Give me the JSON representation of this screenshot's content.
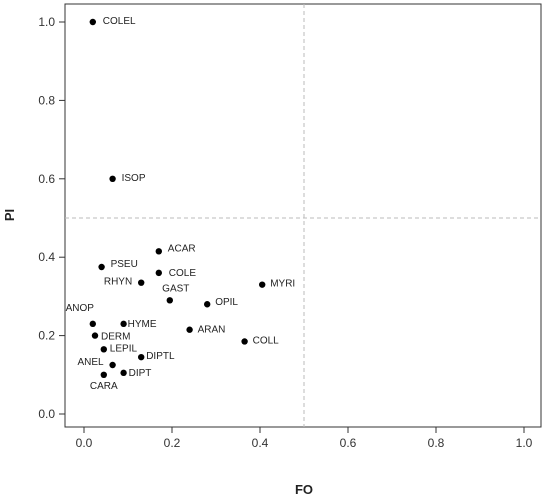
{
  "chart_data": {
    "type": "scatter",
    "xlabel": "FO",
    "ylabel": "PI",
    "xlim": [
      0,
      1.0
    ],
    "ylim": [
      0,
      1.0
    ],
    "xticks": [
      "0.0",
      "0.2",
      "0.4",
      "0.6",
      "0.8",
      "1.0"
    ],
    "yticks": [
      "0.0",
      "0.2",
      "0.4",
      "0.6",
      "0.8",
      "1.0"
    ],
    "reference_lines": {
      "x": 0.5,
      "y": 0.5,
      "style": "dashed"
    },
    "grid": false,
    "points": [
      {
        "label": "COLEL",
        "x": 0.02,
        "y": 1.0
      },
      {
        "label": "ISOP",
        "x": 0.065,
        "y": 0.6
      },
      {
        "label": "ACAR",
        "x": 0.17,
        "y": 0.415
      },
      {
        "label": "PSEU",
        "x": 0.04,
        "y": 0.375
      },
      {
        "label": "COLE",
        "x": 0.17,
        "y": 0.36
      },
      {
        "label": "RHYN",
        "x": 0.13,
        "y": 0.335
      },
      {
        "label": "MYRI",
        "x": 0.405,
        "y": 0.33
      },
      {
        "label": "GAST",
        "x": 0.195,
        "y": 0.29
      },
      {
        "label": "OPIL",
        "x": 0.28,
        "y": 0.28
      },
      {
        "label": "ANOP",
        "x": 0.02,
        "y": 0.23
      },
      {
        "label": "HYME",
        "x": 0.09,
        "y": 0.23
      },
      {
        "label": "ARAN",
        "x": 0.24,
        "y": 0.215
      },
      {
        "label": "DERM",
        "x": 0.025,
        "y": 0.2
      },
      {
        "label": "COLL",
        "x": 0.365,
        "y": 0.185
      },
      {
        "label": "LEPIL",
        "x": 0.045,
        "y": 0.165
      },
      {
        "label": "DIPTL",
        "x": 0.13,
        "y": 0.145
      },
      {
        "label": "ANEL",
        "x": 0.065,
        "y": 0.125
      },
      {
        "label": "DIPT",
        "x": 0.09,
        "y": 0.105
      },
      {
        "label": "CARA",
        "x": 0.045,
        "y": 0.1
      }
    ]
  }
}
